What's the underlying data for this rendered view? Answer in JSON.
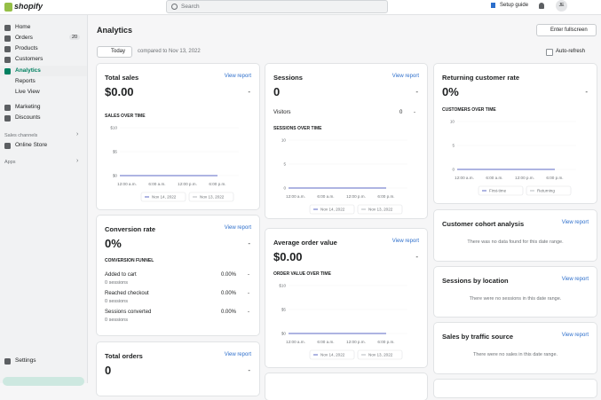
{
  "topbar": {
    "logo": "shopify",
    "search": "Search",
    "setup_guide": "Setup guide",
    "avatar": "JE"
  },
  "sidebar": {
    "home": "Home",
    "orders": "Orders",
    "orders_badge": 20,
    "products": "Products",
    "customers": "Customers",
    "analytics": "Analytics",
    "reports": "Reports",
    "live_view": "Live View",
    "marketing": "Marketing",
    "discounts": "Discounts",
    "sales_channels": "Sales channels",
    "online_store": "Online Store",
    "apps": "Apps",
    "settings": "Settings"
  },
  "header": {
    "title": "Analytics",
    "fullscreen": "Enter fullscreen",
    "date": "Today",
    "compared": "compared to Nov 13, 2022",
    "auto_refresh": "Auto-refresh"
  },
  "cards": {
    "total_sales": {
      "title": "Total sales",
      "link": "View report",
      "value": "$0.00",
      "change": "-",
      "chart": {
        "label": "SALES OVER TIME",
        "yticks": [
          "$10",
          "$5",
          "$0"
        ],
        "xlabels": [
          "12:00 a.m.",
          "6:00 a.m.",
          "12:00 p.m.",
          "6:00 p.m."
        ],
        "legend": [
          "Nov 14, 2022",
          "Nov 13, 2022"
        ]
      }
    },
    "conversion_rate": {
      "title": "Conversion rate",
      "link": "View report",
      "value": "0%",
      "change": "-",
      "funnel_title": "CONVERSION FUNNEL",
      "rows": [
        [
          "Added to cart",
          "0 sessions",
          "0.00%",
          "-"
        ],
        [
          "Reached checkout",
          "0 sessions",
          "0.00%",
          "-"
        ],
        [
          "Sessions converted",
          "0 sessions",
          "0.00%",
          "-"
        ]
      ]
    },
    "total_orders": {
      "title": "Total orders",
      "link": "View report",
      "value": "0",
      "change": "-"
    },
    "sessions": {
      "title": "Sessions",
      "link": "View report",
      "value": "0",
      "change": "-",
      "visitors": "Visitors",
      "visitors_value": "0",
      "visitors_change": "-",
      "chart": {
        "label": "SESSIONS OVER TIME",
        "yticks": [
          10,
          5,
          0
        ],
        "xlabels": [
          "12:00 a.m.",
          "6:00 a.m.",
          "12:00 p.m.",
          "6:00 p.m."
        ],
        "legend": [
          "Nov 14, 2022",
          "Nov 13, 2022"
        ]
      }
    },
    "average_order_value": {
      "title": "Average order value",
      "link": "View report",
      "value": "$0.00",
      "change": "-",
      "chart": {
        "label": "ORDER VALUE OVER TIME",
        "yticks": [
          "$10",
          "$5",
          "$0"
        ],
        "xlabels": [
          "12:00 a.m.",
          "6:00 a.m.",
          "12:00 p.m.",
          "6:00 p.m."
        ],
        "legend": [
          "Nov 14, 2022",
          "Nov 13, 2022"
        ]
      }
    },
    "returning_customer_rate": {
      "title": "Returning customer rate",
      "value": "0%",
      "change": "-",
      "chart": {
        "label": "CUSTOMERS OVER TIME",
        "yticks": [
          10,
          5,
          0
        ],
        "xlabels": [
          "12:00 a.m.",
          "6:00 a.m.",
          "12:00 p.m.",
          "6:00 p.m."
        ],
        "legend": [
          "First-time",
          "Returning"
        ]
      }
    },
    "cohort": {
      "title": "Customer cohort analysis",
      "link": "View report",
      "empty": "There was no data found for this date range."
    },
    "sessions_by_location": {
      "title": "Sessions by location",
      "link": "View report",
      "empty": "There were no sessions in this date range."
    },
    "sales_by_traffic": {
      "title": "Sales by traffic source",
      "link": "View report",
      "empty": "There were no sales in this date range."
    }
  }
}
